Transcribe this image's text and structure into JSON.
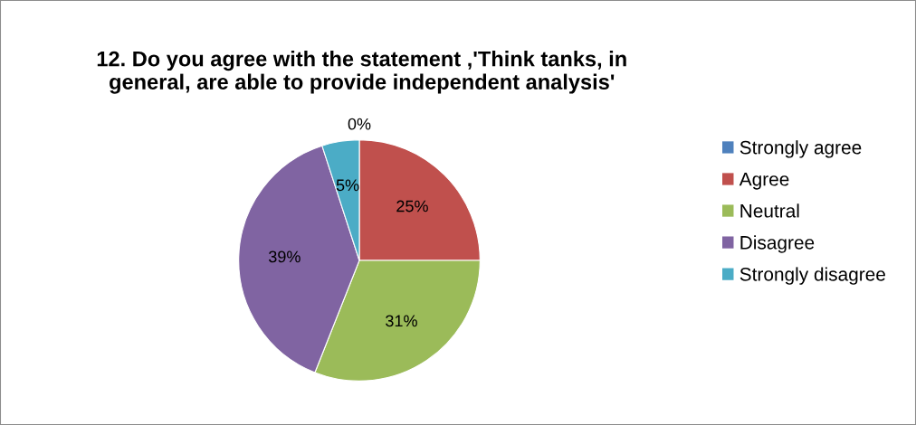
{
  "chart_data": {
    "type": "pie",
    "title": "12. Do you agree with the statement ,'Think tanks, in\ngeneral, are able to provide independent analysis'",
    "categories": [
      "Strongly agree",
      "Agree",
      "Neutral",
      "Disagree",
      "Strongly disagree"
    ],
    "values": [
      0,
      25,
      31,
      39,
      5
    ],
    "value_labels": [
      "0%",
      "25%",
      "31%",
      "39%",
      "5%"
    ],
    "colors": [
      "#4f81bd",
      "#c0504d",
      "#9bbb59",
      "#8064a2",
      "#4bacc6"
    ],
    "legend": "right"
  }
}
